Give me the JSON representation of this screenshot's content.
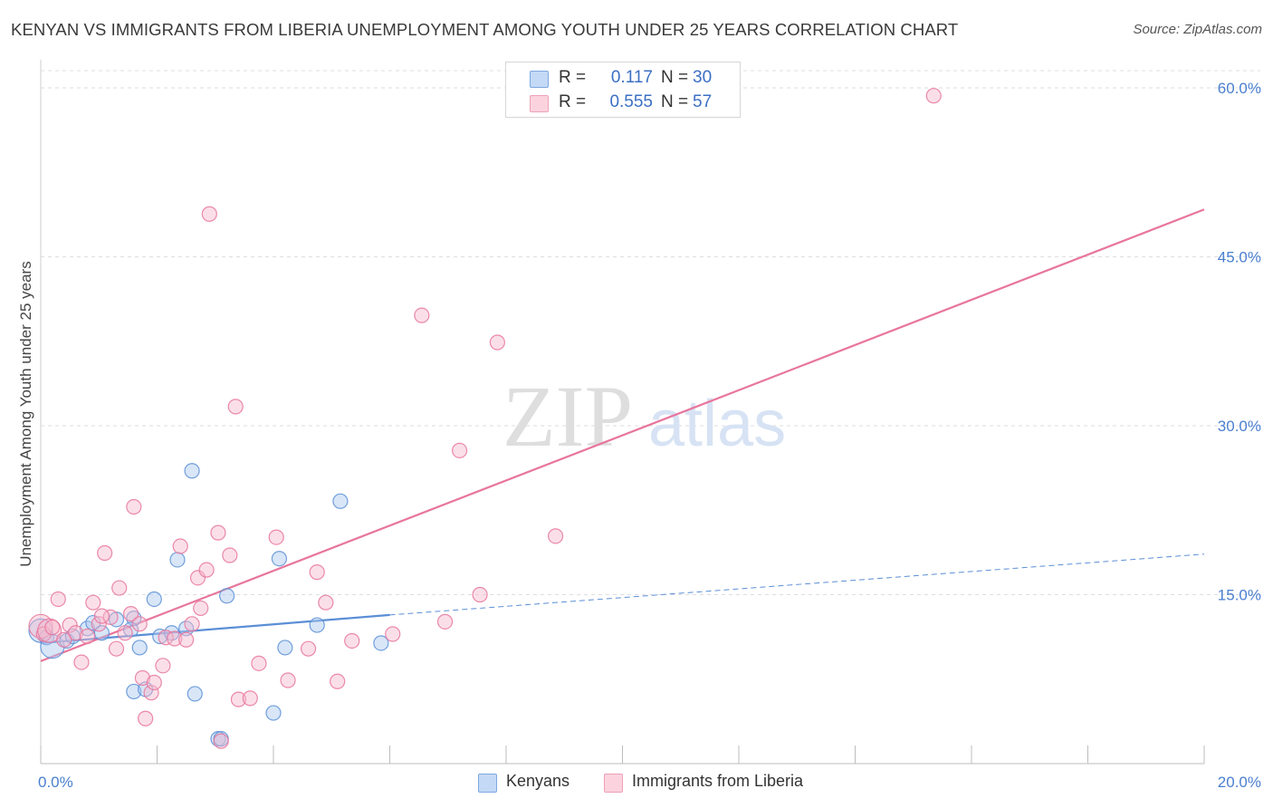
{
  "title": "KENYAN VS IMMIGRANTS FROM LIBERIA UNEMPLOYMENT AMONG YOUTH UNDER 25 YEARS CORRELATION CHART",
  "source": "Source: ZipAtlas.com",
  "watermark": {
    "zip": "ZIP",
    "atlas": "atlas"
  },
  "legend": {
    "rows": [
      {
        "r_label": "R =",
        "r_value": "0.117",
        "n_label": "N =",
        "n_value": "30",
        "color": "#a8c8f0"
      },
      {
        "r_label": "R =",
        "r_value": "0.555",
        "n_label": "N =",
        "n_value": "57",
        "color": "#f7b8cb"
      }
    ]
  },
  "bottom_legend": [
    {
      "label": "Kenyans",
      "color": "#a8c8f0"
    },
    {
      "label": "Immigrants from Liberia",
      "color": "#f7b8cb"
    }
  ],
  "chart_data": {
    "type": "scatter",
    "title": "KENYAN VS IMMIGRANTS FROM LIBERIA UNEMPLOYMENT AMONG YOUTH UNDER 25 YEARS CORRELATION CHART",
    "xlabel": "",
    "ylabel": "Unemployment Among Youth under 25 years",
    "xlim": [
      0,
      20
    ],
    "ylim": [
      0,
      63
    ],
    "x_tick_labels": [
      {
        "value": 0,
        "label": "0.0%"
      },
      {
        "value": 20,
        "label": "20.0%"
      }
    ],
    "y_tick_labels": [
      {
        "value": 15,
        "label": "15.0%"
      },
      {
        "value": 30,
        "label": "30.0%"
      },
      {
        "value": 45,
        "label": "45.0%"
      },
      {
        "value": 60,
        "label": "60.0%"
      }
    ],
    "grid": true,
    "legend_position": "top-center",
    "series": [
      {
        "name": "Kenyans",
        "color": "#5b8fd6",
        "fill": "#a8c8f0",
        "points": [
          [
            0.0,
            11.8
          ],
          [
            0.1,
            11.2
          ],
          [
            0.2,
            10.4
          ],
          [
            0.45,
            10.9
          ],
          [
            0.8,
            12.0
          ],
          [
            0.9,
            12.5
          ],
          [
            1.05,
            11.6
          ],
          [
            1.3,
            12.8
          ],
          [
            1.6,
            12.9
          ],
          [
            1.6,
            6.4
          ],
          [
            1.7,
            10.3
          ],
          [
            1.8,
            6.6
          ],
          [
            1.95,
            14.6
          ],
          [
            2.05,
            11.3
          ],
          [
            2.25,
            11.6
          ],
          [
            2.35,
            18.1
          ],
          [
            2.5,
            12.0
          ],
          [
            2.6,
            26.0
          ],
          [
            2.65,
            6.2
          ],
          [
            3.05,
            2.2
          ],
          [
            3.1,
            2.2
          ],
          [
            4.0,
            4.5
          ],
          [
            4.1,
            18.2
          ],
          [
            4.2,
            10.3
          ],
          [
            4.75,
            12.3
          ],
          [
            5.15,
            23.3
          ],
          [
            5.85,
            10.7
          ],
          [
            3.2,
            14.9
          ],
          [
            1.55,
            11.9
          ],
          [
            0.55,
            11.3
          ]
        ],
        "trend": {
          "x": [
            0,
            6.0
          ],
          "y": [
            10.7,
            13.2
          ]
        },
        "trend_dashed": {
          "x": [
            6.0,
            20
          ],
          "y": [
            13.2,
            18.6
          ]
        }
      },
      {
        "name": "Immigrants from Liberia",
        "color": "#e8759c",
        "fill": "#f7b8cb",
        "points": [
          [
            0.0,
            12.2
          ],
          [
            0.05,
            11.5
          ],
          [
            0.15,
            11.8
          ],
          [
            0.3,
            14.6
          ],
          [
            0.5,
            12.3
          ],
          [
            0.6,
            11.6
          ],
          [
            0.7,
            9.0
          ],
          [
            0.8,
            11.3
          ],
          [
            0.9,
            14.3
          ],
          [
            1.0,
            12.4
          ],
          [
            1.1,
            18.7
          ],
          [
            1.2,
            13.0
          ],
          [
            1.3,
            10.2
          ],
          [
            1.35,
            15.6
          ],
          [
            1.45,
            11.6
          ],
          [
            1.55,
            13.3
          ],
          [
            1.6,
            22.8
          ],
          [
            1.7,
            12.4
          ],
          [
            1.75,
            7.6
          ],
          [
            1.8,
            4.0
          ],
          [
            1.9,
            6.3
          ],
          [
            1.95,
            7.2
          ],
          [
            2.1,
            8.7
          ],
          [
            2.15,
            11.2
          ],
          [
            2.3,
            11.1
          ],
          [
            2.4,
            19.3
          ],
          [
            2.5,
            11.0
          ],
          [
            2.6,
            12.4
          ],
          [
            2.7,
            16.5
          ],
          [
            2.75,
            13.8
          ],
          [
            2.85,
            17.2
          ],
          [
            2.9,
            48.8
          ],
          [
            3.05,
            20.5
          ],
          [
            3.1,
            2.0
          ],
          [
            3.25,
            18.5
          ],
          [
            3.35,
            31.7
          ],
          [
            3.4,
            5.7
          ],
          [
            3.6,
            5.8
          ],
          [
            3.75,
            8.9
          ],
          [
            4.05,
            20.1
          ],
          [
            4.25,
            7.4
          ],
          [
            4.6,
            10.2
          ],
          [
            4.75,
            17.0
          ],
          [
            4.9,
            14.3
          ],
          [
            5.1,
            7.3
          ],
          [
            5.35,
            10.9
          ],
          [
            6.05,
            11.5
          ],
          [
            6.55,
            39.8
          ],
          [
            6.95,
            12.6
          ],
          [
            7.2,
            27.8
          ],
          [
            7.55,
            15.0
          ],
          [
            7.85,
            37.4
          ],
          [
            8.85,
            20.2
          ],
          [
            15.35,
            59.3
          ],
          [
            0.2,
            12.1
          ],
          [
            1.05,
            13.1
          ],
          [
            0.4,
            11.0
          ]
        ],
        "trend": {
          "x": [
            0,
            20
          ],
          "y": [
            9.1,
            49.2
          ]
        }
      }
    ]
  }
}
